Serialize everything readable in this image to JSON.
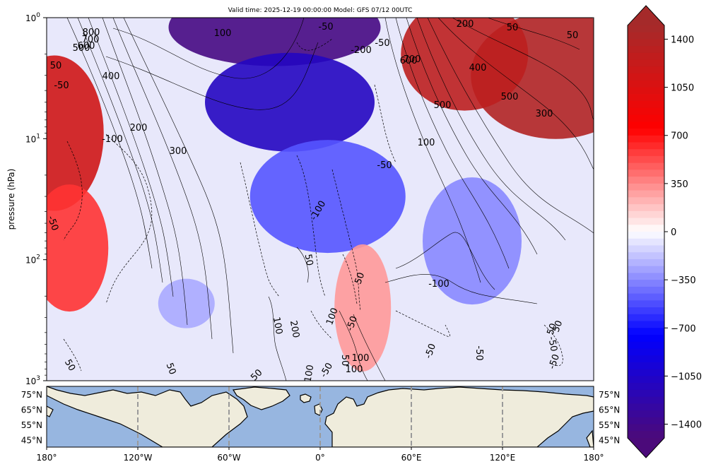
{
  "title": "Valid time: 2025-12-19 00:00:00 Model: GFS 07/12 00UTC",
  "colors": {
    "land": "#efecdc",
    "ocean": "#97b6e0",
    "colormap": [
      "#4b0a7a",
      "#0000ff",
      "#ffffff",
      "#ff0000",
      "#a52a2a"
    ]
  },
  "chart_data": [
    {
      "type": "heatmap",
      "title": "Valid time: 2025-12-19 00:00:00 Model: GFS 07/12 00UTC",
      "xlabel": "",
      "ylabel": "pressure (hPa)",
      "yscale": "log",
      "ylim": [
        1000,
        1
      ],
      "xlim": [
        -180,
        180
      ],
      "ytick_labels": [
        "10^0",
        "10^1",
        "10^2",
        "10^3"
      ],
      "y_ticks": [
        {
          "value": 1,
          "base": "10",
          "exp": "0"
        },
        {
          "value": 10,
          "base": "10",
          "exp": "1"
        },
        {
          "value": 100,
          "base": "10",
          "exp": "2"
        },
        {
          "value": 1000,
          "base": "10",
          "exp": "3"
        }
      ],
      "fill_features": [
        {
          "value": -1450,
          "lon": -30,
          "p": 1.2
        },
        {
          "value": -1100,
          "lon": -20,
          "p": 5
        },
        {
          "value": -500,
          "lon": 5,
          "p": 30
        },
        {
          "value": -350,
          "lon": 100,
          "p": 70
        },
        {
          "value": -250,
          "lon": -88,
          "p": 230
        },
        {
          "value": 1400,
          "lon": 155,
          "p": 3
        },
        {
          "value": 1300,
          "lon": 95,
          "p": 2
        },
        {
          "value": 1150,
          "lon": -175,
          "p": 9
        },
        {
          "value": 600,
          "lon": -165,
          "p": 80
        },
        {
          "value": 300,
          "lon": 28,
          "p": 250
        }
      ],
      "contour_labels": [
        "800",
        "700",
        "600",
        "500",
        "50",
        "400",
        "-50",
        "200",
        "-100",
        "300",
        "100",
        "-50",
        "-200",
        "-50",
        "600",
        "700",
        "200",
        "50",
        "50",
        "400",
        "500",
        "500",
        "300",
        "100",
        "-50",
        "-100",
        "-50",
        "50",
        "50",
        "-100",
        "100",
        "-50",
        "100",
        "200",
        "50",
        "-50",
        "100",
        "100",
        "50",
        "-50",
        "-50",
        "50",
        "50",
        "50",
        "-100",
        "-50",
        "50",
        "-50"
      ],
      "colorbar": {
        "ticks": [
          1400,
          1050,
          700,
          350,
          0,
          -350,
          -700,
          -1050,
          -1400
        ],
        "tick_labels": [
          "1400",
          "1050",
          "700",
          "350",
          "0",
          "−350",
          "−700",
          "−1050",
          "−1400"
        ],
        "range": [
          -1500,
          1500
        ],
        "extend": "both"
      }
    },
    {
      "type": "map",
      "xlim": [
        -180,
        180
      ],
      "ylim": [
        40,
        80
      ],
      "x_ticks": [
        -180,
        -120,
        -60,
        0,
        60,
        120,
        180
      ],
      "x_tick_labels": [
        "180°",
        "120°W",
        "60°W",
        "0°",
        "60°E",
        "120°E",
        "180°"
      ],
      "y_ticks": [
        75,
        65,
        55,
        45
      ],
      "y_tick_labels": [
        "75°N",
        "65°N",
        "55°N",
        "45°N"
      ],
      "grid": "dashed meridians"
    }
  ]
}
